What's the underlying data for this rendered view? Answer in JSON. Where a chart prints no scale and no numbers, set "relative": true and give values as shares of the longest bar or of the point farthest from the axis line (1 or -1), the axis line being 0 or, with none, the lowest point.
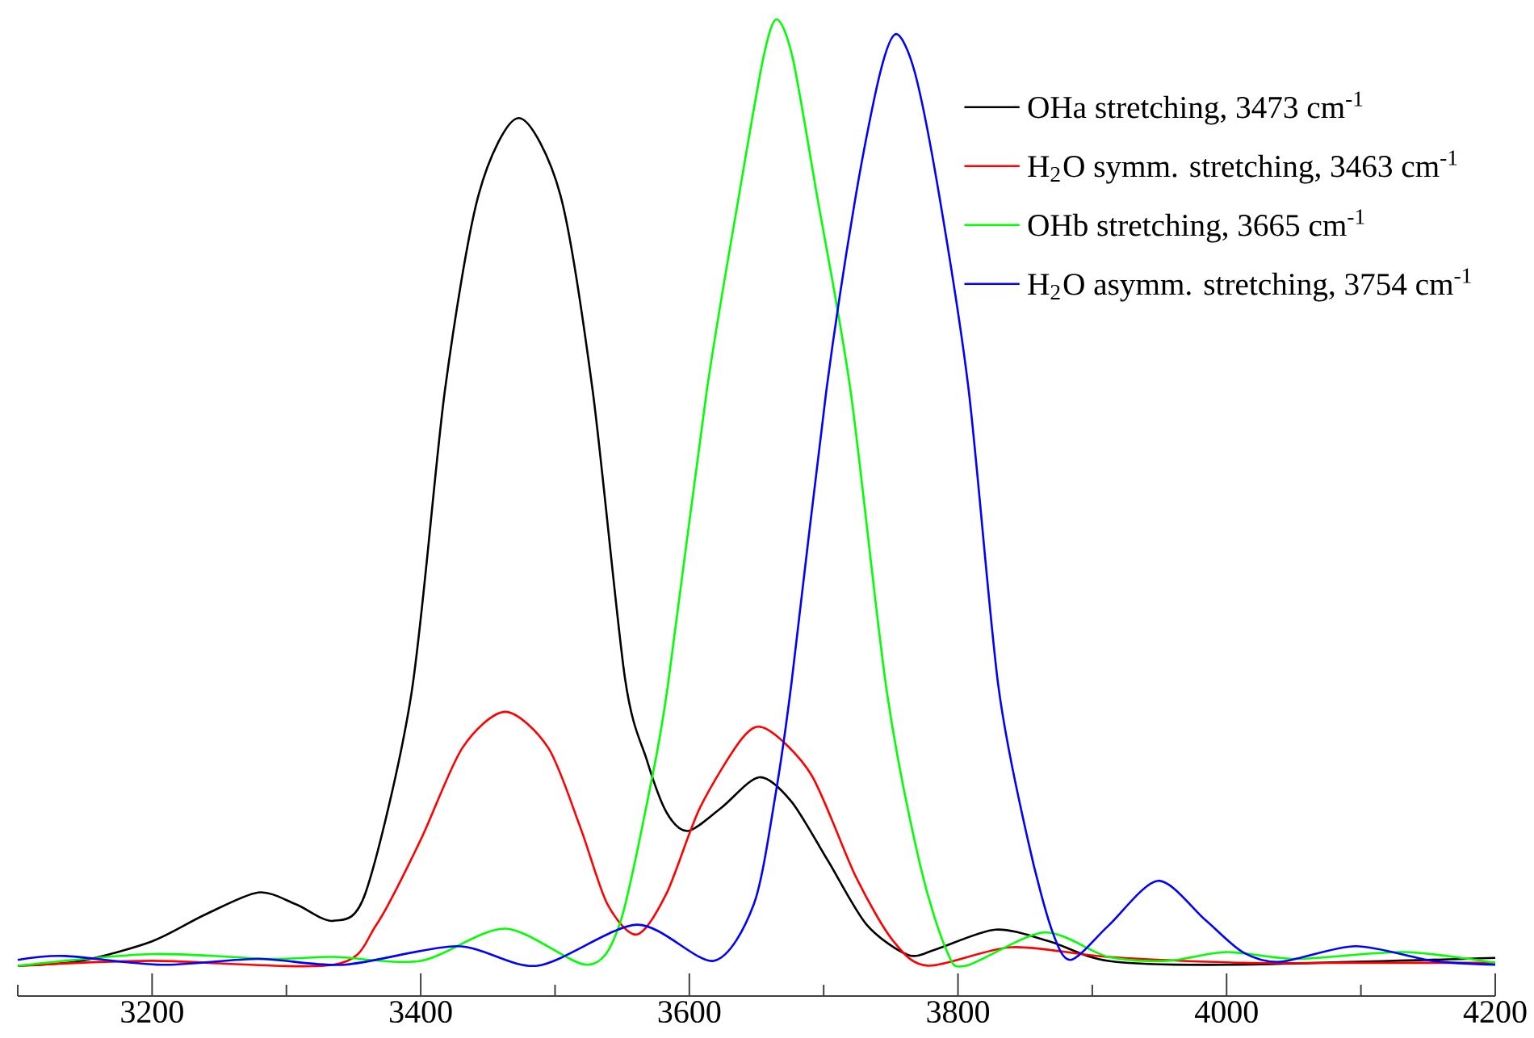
{
  "chart_data": {
    "type": "line",
    "relative": true,
    "xlim": [
      3100,
      4200
    ],
    "xticks": [
      {
        "value": 3100,
        "label": null
      },
      3200,
      {
        "value": 3300,
        "label": null
      },
      3400,
      {
        "value": 3500,
        "label": null
      },
      3600,
      {
        "value": 3700,
        "label": null
      },
      3800,
      {
        "value": 3900,
        "label": null
      },
      4000,
      {
        "value": 4100,
        "label": null
      },
      4200
    ],
    "legend": "top right",
    "marker": "none",
    "line_style": "solid",
    "grid": false,
    "series": [
      {
        "name": "OHa stretching, 3473 cm$^{-1}$",
        "color": "#000000",
        "x": [
          3100,
          3147,
          3200,
          3239,
          3279,
          3307,
          3335,
          3359,
          3393,
          3418,
          3443,
          3473,
          3504,
          3528,
          3552,
          3568,
          3583,
          3599,
          3624,
          3652,
          3676,
          3703,
          3732,
          3763,
          3784,
          3828,
          3868,
          3912,
          4000,
          4200
        ],
        "values": [
          0.031,
          0.036,
          0.056,
          0.083,
          0.106,
          0.094,
          0.077,
          0.106,
          0.309,
          0.62,
          0.82,
          0.899,
          0.82,
          0.62,
          0.326,
          0.243,
          0.188,
          0.169,
          0.193,
          0.224,
          0.199,
          0.139,
          0.073,
          0.042,
          0.048,
          0.068,
          0.056,
          0.036,
          0.032,
          0.039
        ]
      },
      {
        "name": "H$_{2}$O symm. stretching, 3463 cm$^{-1}$",
        "color": "#ff0000",
        "x": [
          3100,
          3200,
          3335,
          3367,
          3400,
          3431,
          3463,
          3495,
          3519,
          3539,
          3561,
          3583,
          3608,
          3640,
          3658,
          3691,
          3724,
          3752,
          3778,
          3840,
          3912,
          4012,
          4092,
          4200
        ],
        "values": [
          0.031,
          0.036,
          0.032,
          0.073,
          0.16,
          0.254,
          0.291,
          0.254,
          0.172,
          0.094,
          0.063,
          0.105,
          0.193,
          0.265,
          0.273,
          0.226,
          0.122,
          0.056,
          0.031,
          0.05,
          0.04,
          0.034,
          0.034,
          0.034
        ]
      },
      {
        "name": "OHb stretching, 3665 cm$^{-1}$",
        "color": "#00ff00",
        "x": [
          3100,
          3200,
          3287,
          3335,
          3400,
          3463,
          3524,
          3548,
          3571,
          3584,
          3613,
          3637,
          3655,
          3665,
          3677,
          3695,
          3720,
          3747,
          3772,
          3792,
          3806,
          3864,
          3912,
          3956,
          4000,
          4052,
          4132,
          4200
        ],
        "values": [
          0.031,
          0.043,
          0.038,
          0.04,
          0.036,
          0.069,
          0.032,
          0.073,
          0.215,
          0.318,
          0.62,
          0.82,
          0.96,
          1,
          0.96,
          0.82,
          0.62,
          0.312,
          0.133,
          0.045,
          0.031,
          0.065,
          0.04,
          0.036,
          0.045,
          0.038,
          0.045,
          0.034
        ]
      },
      {
        "name": "H$_{2}$O asymm. stretching, 3754 cm$^{-1}$",
        "color": "#0000ff",
        "x": [
          3100,
          3135,
          3207,
          3279,
          3343,
          3427,
          3487,
          3561,
          3618,
          3648,
          3664,
          3676,
          3702,
          3724,
          3742,
          3754,
          3768,
          3786,
          3808,
          3830,
          3852,
          3870,
          3884,
          3912,
          3949,
          3984,
          4012,
          4040,
          4096,
          4153,
          4200
        ],
        "values": [
          0.037,
          0.041,
          0.032,
          0.038,
          0.032,
          0.051,
          0.031,
          0.073,
          0.036,
          0.094,
          0.205,
          0.32,
          0.62,
          0.82,
          0.945,
          0.985,
          0.945,
          0.82,
          0.62,
          0.318,
          0.16,
          0.067,
          0.037,
          0.072,
          0.118,
          0.078,
          0.045,
          0.035,
          0.051,
          0.036,
          0.032
        ]
      }
    ]
  }
}
